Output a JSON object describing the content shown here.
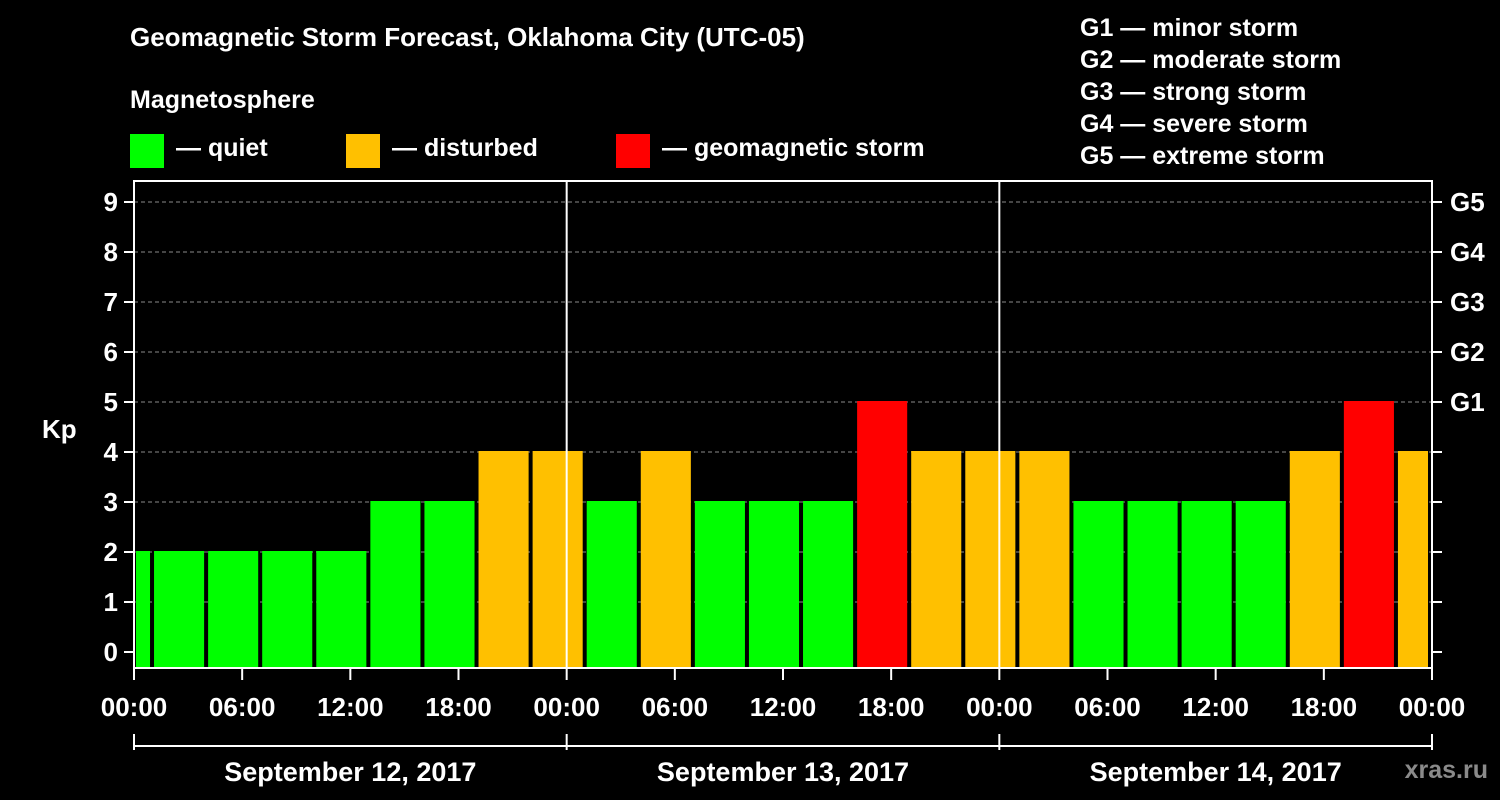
{
  "title": "Geomagnetic Storm Forecast, Oklahoma City (UTC-05)",
  "legend": {
    "title": "Magnetosphere",
    "items": [
      {
        "label": "— quiet",
        "color": "#00ff00"
      },
      {
        "label": "— disturbed",
        "color": "#ffc000"
      },
      {
        "label": "— geomagnetic storm",
        "color": "#ff0000"
      }
    ]
  },
  "g_scale": [
    "G1 — minor storm",
    "G2 — moderate storm",
    "G3 — strong storm",
    "G4 — severe storm",
    "G5 — extreme storm"
  ],
  "watermark": "xras.ru",
  "chart_data": {
    "type": "bar",
    "ylabel": "Kp",
    "ylim": [
      0,
      9
    ],
    "y_ticks": [
      "0",
      "1",
      "2",
      "3",
      "4",
      "5",
      "6",
      "7",
      "8",
      "9"
    ],
    "g_axis": [
      {
        "kp": 5,
        "label": "G1"
      },
      {
        "kp": 6,
        "label": "G2"
      },
      {
        "kp": 7,
        "label": "G3"
      },
      {
        "kp": 8,
        "label": "G4"
      },
      {
        "kp": 9,
        "label": "G5"
      }
    ],
    "x_ticks": [
      "00:00",
      "06:00",
      "12:00",
      "18:00",
      "00:00",
      "06:00",
      "12:00",
      "18:00",
      "00:00",
      "06:00",
      "12:00",
      "18:00",
      "00:00"
    ],
    "days": [
      "September 12, 2017",
      "September 13, 2017",
      "September 14, 2017"
    ],
    "grid": true,
    "colors": {
      "quiet": "#00ff00",
      "disturbed": "#ffc000",
      "storm": "#ff0000"
    },
    "thresholds": {
      "disturbed": 4,
      "storm": 5
    },
    "bars": [
      {
        "start_hour": 0,
        "end_hour": 1,
        "kp": 2
      },
      {
        "start_hour": 1,
        "end_hour": 4,
        "kp": 2
      },
      {
        "start_hour": 4,
        "end_hour": 7,
        "kp": 2
      },
      {
        "start_hour": 7,
        "end_hour": 10,
        "kp": 2
      },
      {
        "start_hour": 10,
        "end_hour": 13,
        "kp": 2
      },
      {
        "start_hour": 13,
        "end_hour": 16,
        "kp": 3
      },
      {
        "start_hour": 16,
        "end_hour": 19,
        "kp": 3
      },
      {
        "start_hour": 19,
        "end_hour": 22,
        "kp": 4
      },
      {
        "start_hour": 22,
        "end_hour": 25,
        "kp": 4
      },
      {
        "start_hour": 25,
        "end_hour": 28,
        "kp": 3
      },
      {
        "start_hour": 28,
        "end_hour": 31,
        "kp": 4
      },
      {
        "start_hour": 31,
        "end_hour": 34,
        "kp": 3
      },
      {
        "start_hour": 34,
        "end_hour": 37,
        "kp": 3
      },
      {
        "start_hour": 37,
        "end_hour": 40,
        "kp": 3
      },
      {
        "start_hour": 40,
        "end_hour": 43,
        "kp": 5
      },
      {
        "start_hour": 43,
        "end_hour": 46,
        "kp": 4
      },
      {
        "start_hour": 46,
        "end_hour": 49,
        "kp": 4
      },
      {
        "start_hour": 49,
        "end_hour": 52,
        "kp": 4
      },
      {
        "start_hour": 52,
        "end_hour": 55,
        "kp": 3
      },
      {
        "start_hour": 55,
        "end_hour": 58,
        "kp": 3
      },
      {
        "start_hour": 58,
        "end_hour": 61,
        "kp": 3
      },
      {
        "start_hour": 61,
        "end_hour": 64,
        "kp": 3
      },
      {
        "start_hour": 64,
        "end_hour": 67,
        "kp": 4
      },
      {
        "start_hour": 67,
        "end_hour": 70,
        "kp": 5
      },
      {
        "start_hour": 70,
        "end_hour": 72,
        "kp": 4
      }
    ]
  }
}
